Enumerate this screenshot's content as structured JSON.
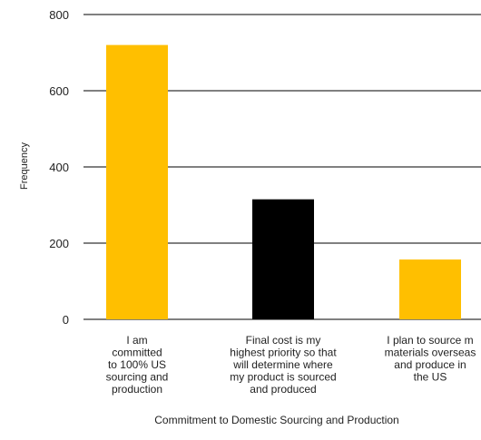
{
  "chart_data": {
    "type": "bar",
    "title": "",
    "xlabel": "Commitment to Domestic Sourcing and Production",
    "ylabel": "Frequency",
    "ylim": [
      0,
      800
    ],
    "yticks": [
      "0",
      "200",
      "400",
      "600",
      "800"
    ],
    "grid": true,
    "categories": [
      [
        "I am",
        "committed",
        "to 100% US",
        "sourcing and",
        "production"
      ],
      [
        "Final cost is my",
        "highest priority so that",
        "will determine where",
        "my product is sourced",
        "and produced"
      ],
      [
        "I plan to source m",
        "materials overseas",
        "and produce in",
        "the US"
      ]
    ],
    "values": [
      720,
      315,
      157
    ],
    "colors": [
      "#FFBF00",
      "#000000",
      "#FFBF00"
    ]
  }
}
